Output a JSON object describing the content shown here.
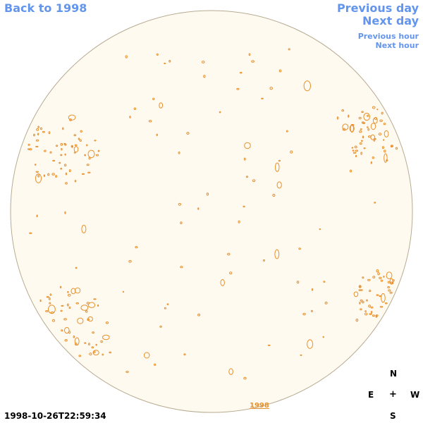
{
  "nav": {
    "back": "Back to 1998",
    "previous_day": "Previous day",
    "next_day": "Next day",
    "previous_hour": "Previous hour",
    "next_hour": "Next hour"
  },
  "compass": {
    "north": "N",
    "east": "E",
    "west": "W",
    "south": "S",
    "center": "+"
  },
  "timestamp": "1998-10-26T22:59:34",
  "year_label": "1998",
  "colors": {
    "link": "#6495ED",
    "disk_fill": "#fffaf0",
    "disk_stroke": "#b7ab92",
    "contour": "#e8902a"
  }
}
